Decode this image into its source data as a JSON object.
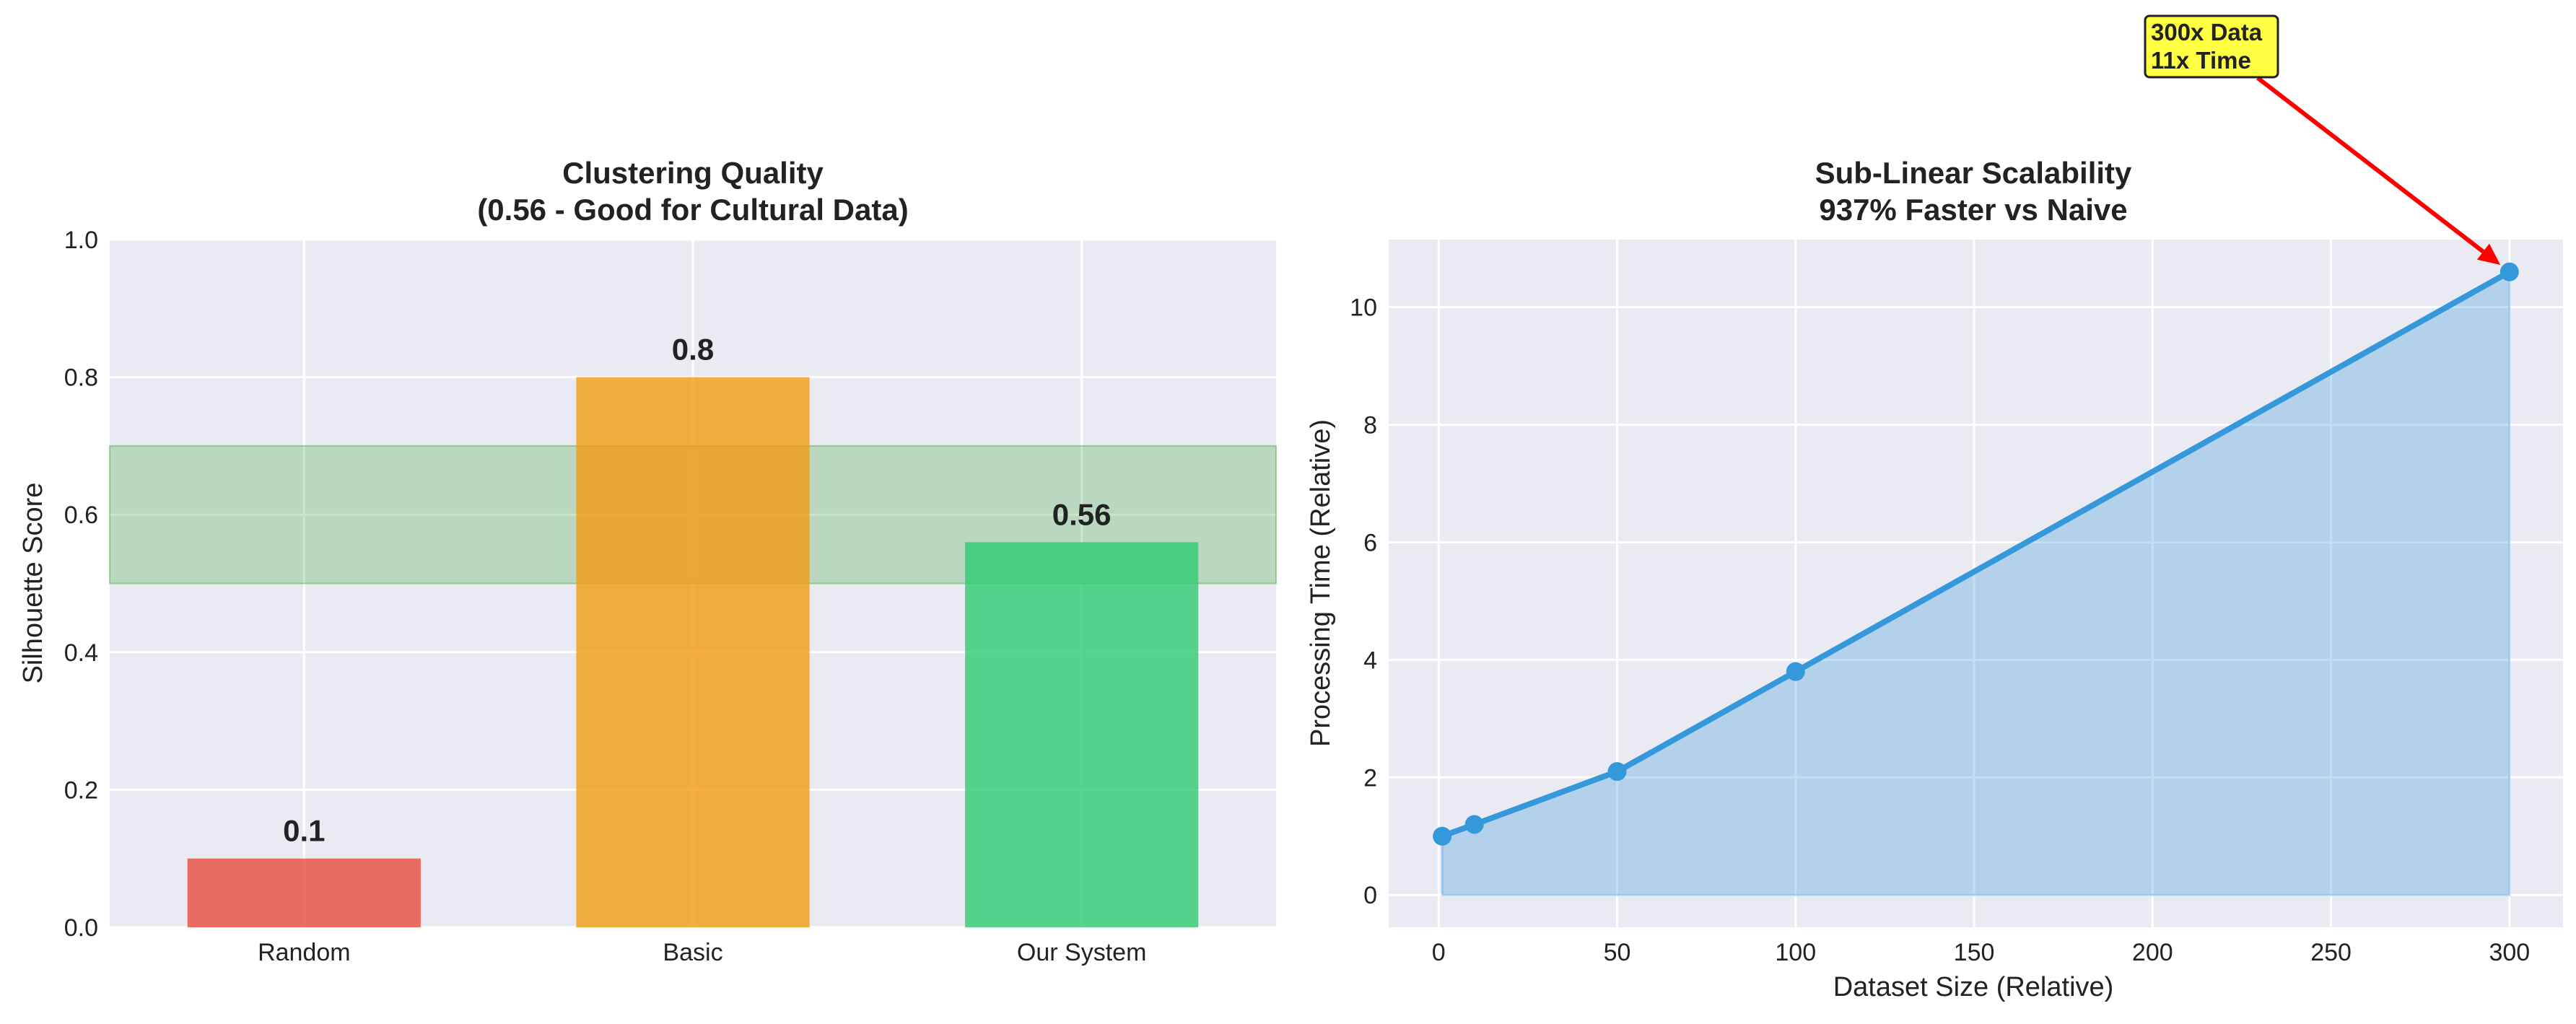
{
  "chart_data": [
    {
      "type": "bar",
      "title": "Clustering Quality",
      "subtitle": "(0.56 - Good for Cultural Data)",
      "xlabel": "",
      "ylabel": "Silhouette Score",
      "categories": [
        "Random",
        "Basic",
        "Our System"
      ],
      "values": [
        0.1,
        0.8,
        0.56
      ],
      "value_labels": [
        "0.1",
        "0.8",
        "0.56"
      ],
      "colors": [
        "#e74c3c",
        "#f39c12",
        "#2ecc71"
      ],
      "ylim": [
        0,
        1.0
      ],
      "yticks": [
        0.0,
        0.2,
        0.4,
        0.6,
        0.8,
        1.0
      ],
      "ytick_labels": [
        "0.0",
        "0.2",
        "0.4",
        "0.6",
        "0.8",
        "1.0"
      ],
      "band": {
        "from": 0.5,
        "to": 0.7,
        "color": "#2ca02c",
        "label": ""
      },
      "grid": true
    },
    {
      "type": "line",
      "title": "Sub-Linear Scalability",
      "subtitle": "937% Faster vs Naive",
      "xlabel": "Dataset Size (Relative)",
      "ylabel": "Processing Time (Relative)",
      "x": [
        1,
        10,
        50,
        100,
        300
      ],
      "y": [
        1.0,
        1.2,
        2.1,
        3.8,
        10.6
      ],
      "fill_under": true,
      "color": "#3498db",
      "xlim": [
        -14,
        315
      ],
      "ylim": [
        -0.55,
        11.15
      ],
      "xticks": [
        0,
        50,
        100,
        150,
        200,
        250,
        300
      ],
      "xtick_labels": [
        "0",
        "50",
        "100",
        "150",
        "200",
        "250",
        "300"
      ],
      "yticks": [
        0,
        2,
        4,
        6,
        8,
        10
      ],
      "ytick_labels": [
        "0",
        "2",
        "4",
        "6",
        "8",
        "10"
      ],
      "annotation": {
        "lines": [
          "300x Data",
          "11x Time"
        ],
        "target_x": 300,
        "target_y": 10.6,
        "box_color": "#ffff44",
        "arrow_color": "#ff0000"
      },
      "grid": true
    }
  ]
}
